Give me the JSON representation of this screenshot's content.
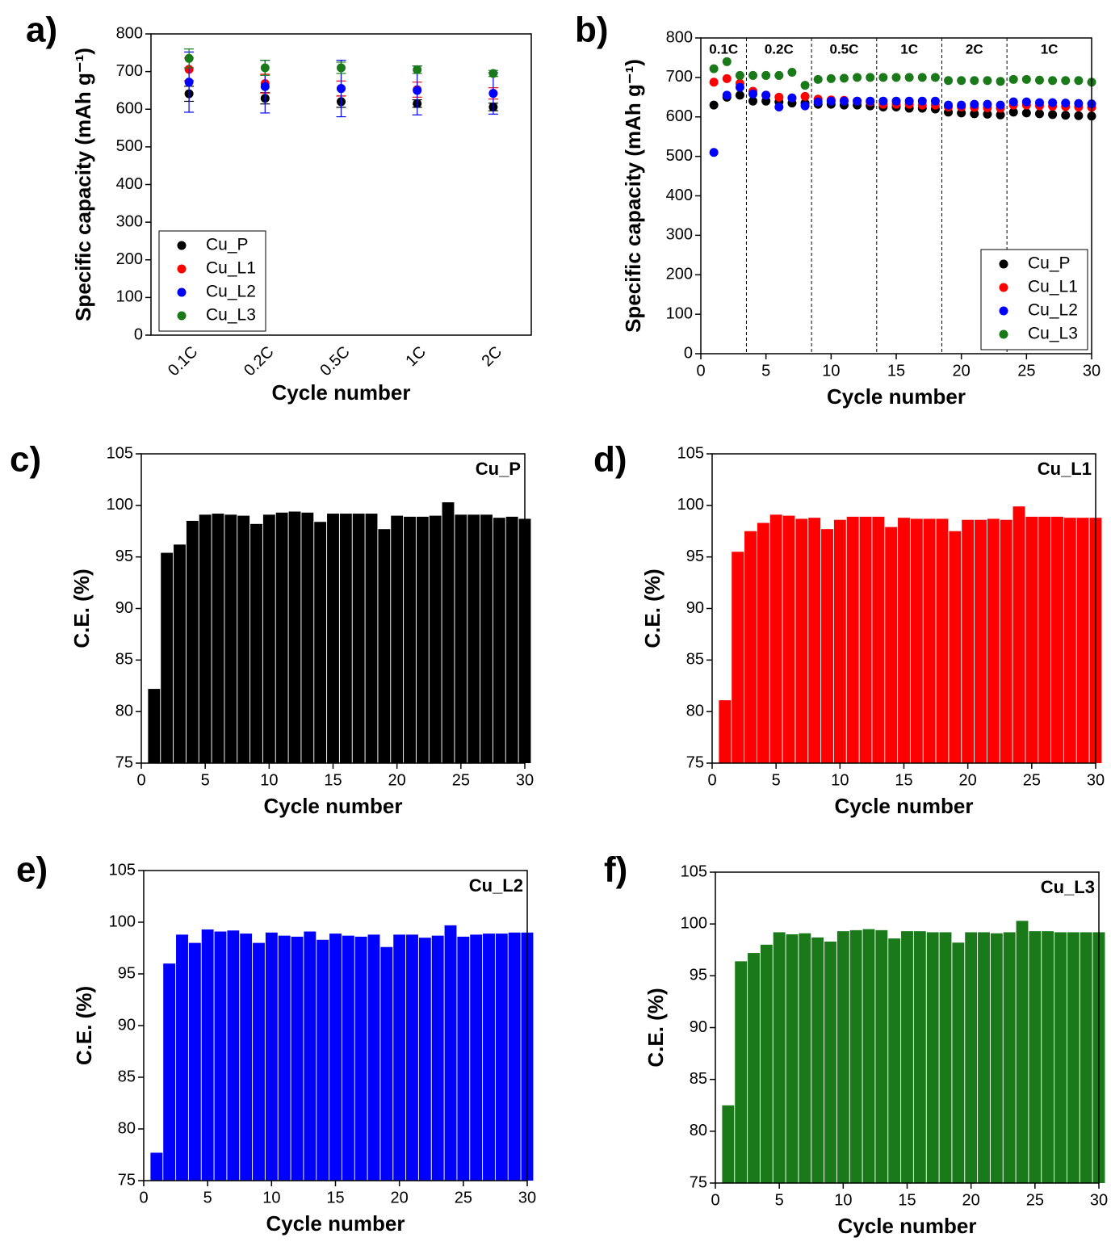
{
  "chart_data": [
    {
      "type": "scatter",
      "panel_label": "a)",
      "x_label": "Cycle number",
      "y_label": "Specific capacity (mAh g⁻¹)",
      "categories": [
        "0.1C",
        "0.2C",
        "0.5C",
        "1C",
        "2C"
      ],
      "ylim": [
        0,
        800
      ],
      "yticks": [
        0,
        100,
        200,
        300,
        400,
        500,
        600,
        700,
        800
      ],
      "legend": "lower left",
      "series": [
        {
          "name": "Cu_P",
          "color": "#000000",
          "values": [
            641,
            629,
            620,
            615,
            606
          ],
          "errors": [
            20,
            15,
            15,
            10,
            10
          ]
        },
        {
          "name": "Cu_L1",
          "color": "#ff0000",
          "values": [
            706,
            668,
            655,
            652,
            642
          ],
          "errors": [
            30,
            25,
            20,
            20,
            15
          ]
        },
        {
          "name": "Cu_L2",
          "color": "#0000ff",
          "values": [
            672,
            660,
            655,
            650,
            642
          ],
          "errors": [
            80,
            70,
            75,
            65,
            55
          ]
        },
        {
          "name": "Cu_L3",
          "color": "#1a7a1a",
          "values": [
            735,
            710,
            710,
            705,
            695
          ],
          "errors": [
            25,
            20,
            15,
            10,
            8
          ]
        }
      ]
    },
    {
      "type": "scatter",
      "panel_label": "b)",
      "x_label": "Cycle number",
      "y_label": "Specific capacity (mAh g⁻¹)",
      "x": [
        1,
        2,
        3,
        4,
        5,
        6,
        7,
        8,
        9,
        10,
        11,
        12,
        13,
        14,
        15,
        16,
        17,
        18,
        19,
        20,
        21,
        22,
        23,
        24,
        25,
        26,
        27,
        28,
        29,
        30
      ],
      "xlim": [
        0,
        30
      ],
      "xticks": [
        0,
        5,
        10,
        15,
        20,
        25,
        30
      ],
      "ylim": [
        0,
        800
      ],
      "yticks": [
        0,
        100,
        200,
        300,
        400,
        500,
        600,
        700,
        800
      ],
      "legend": "lower right",
      "dividers": [
        3.5,
        8.5,
        13.5,
        18.5,
        23.5
      ],
      "rate_labels": [
        "0.1C",
        "0.2C",
        "0.5C",
        "1C",
        "2C",
        "1C"
      ],
      "series": [
        {
          "name": "Cu_P",
          "color": "#000000",
          "values": [
            630,
            650,
            655,
            640,
            640,
            638,
            635,
            635,
            632,
            632,
            630,
            630,
            628,
            625,
            625,
            622,
            622,
            620,
            612,
            610,
            608,
            607,
            605,
            612,
            610,
            608,
            606,
            604,
            603,
            602
          ]
        },
        {
          "name": "Cu_L1",
          "color": "#ff0000",
          "values": [
            688,
            697,
            685,
            665,
            655,
            650,
            648,
            652,
            645,
            643,
            642,
            640,
            638,
            632,
            632,
            632,
            630,
            630,
            625,
            625,
            624,
            623,
            622,
            630,
            630,
            628,
            627,
            626,
            625,
            624
          ]
        },
        {
          "name": "Cu_L2",
          "color": "#0000ff",
          "values": [
            510,
            655,
            675,
            658,
            655,
            625,
            648,
            628,
            638,
            640,
            640,
            640,
            640,
            640,
            640,
            640,
            640,
            640,
            630,
            630,
            632,
            632,
            630,
            638,
            638,
            636,
            636,
            635,
            634,
            633
          ]
        },
        {
          "name": "Cu_L3",
          "color": "#1a7a1a",
          "values": [
            722,
            740,
            705,
            705,
            705,
            705,
            713,
            680,
            695,
            697,
            698,
            700,
            700,
            700,
            700,
            700,
            700,
            700,
            692,
            692,
            692,
            692,
            690,
            695,
            695,
            693,
            692,
            692,
            692,
            688
          ]
        }
      ]
    },
    {
      "type": "bar",
      "panel_label": "c)",
      "x_label": "Cycle number",
      "y_label": "C.E. (%)",
      "x": [
        1,
        2,
        3,
        4,
        5,
        6,
        7,
        8,
        9,
        10,
        11,
        12,
        13,
        14,
        15,
        16,
        17,
        18,
        19,
        20,
        21,
        22,
        23,
        24,
        25,
        26,
        27,
        28,
        29,
        30
      ],
      "xlim": [
        0,
        30
      ],
      "xticks": [
        0,
        5,
        10,
        15,
        20,
        25,
        30
      ],
      "ylim": [
        75,
        105
      ],
      "yticks": [
        75,
        80,
        85,
        90,
        95,
        100,
        105
      ],
      "series": [
        {
          "name": "Cu_P",
          "color": "#000000",
          "values": [
            82.2,
            95.4,
            96.2,
            98.5,
            99.1,
            99.2,
            99.1,
            99.0,
            98.2,
            99.1,
            99.3,
            99.4,
            99.3,
            98.4,
            99.2,
            99.2,
            99.2,
            99.2,
            97.7,
            99.0,
            98.9,
            98.9,
            99.0,
            100.3,
            99.1,
            99.1,
            99.1,
            98.8,
            98.9,
            98.7
          ]
        }
      ]
    },
    {
      "type": "bar",
      "panel_label": "d)",
      "x_label": "Cycle number",
      "y_label": "C.E. (%)",
      "x": [
        1,
        2,
        3,
        4,
        5,
        6,
        7,
        8,
        9,
        10,
        11,
        12,
        13,
        14,
        15,
        16,
        17,
        18,
        19,
        20,
        21,
        22,
        23,
        24,
        25,
        26,
        27,
        28,
        29,
        30
      ],
      "xlim": [
        0,
        30
      ],
      "xticks": [
        0,
        5,
        10,
        15,
        20,
        25,
        30
      ],
      "ylim": [
        75,
        105
      ],
      "yticks": [
        75,
        80,
        85,
        90,
        95,
        100,
        105
      ],
      "series": [
        {
          "name": "Cu_L1",
          "color": "#ff0000",
          "values": [
            81.1,
            95.5,
            97.5,
            98.3,
            99.1,
            99.0,
            98.7,
            98.8,
            97.7,
            98.6,
            98.9,
            98.9,
            98.9,
            97.9,
            98.8,
            98.7,
            98.7,
            98.7,
            97.5,
            98.6,
            98.6,
            98.7,
            98.6,
            99.9,
            98.9,
            98.9,
            98.9,
            98.8,
            98.8,
            98.8
          ]
        }
      ]
    },
    {
      "type": "bar",
      "panel_label": "e)",
      "x_label": "Cycle number",
      "y_label": "C.E. (%)",
      "x": [
        1,
        2,
        3,
        4,
        5,
        6,
        7,
        8,
        9,
        10,
        11,
        12,
        13,
        14,
        15,
        16,
        17,
        18,
        19,
        20,
        21,
        22,
        23,
        24,
        25,
        26,
        27,
        28,
        29,
        30
      ],
      "xlim": [
        0,
        30
      ],
      "xticks": [
        0,
        5,
        10,
        15,
        20,
        25,
        30
      ],
      "ylim": [
        75,
        105
      ],
      "yticks": [
        75,
        80,
        85,
        90,
        95,
        100,
        105
      ],
      "series": [
        {
          "name": "Cu_L2",
          "color": "#0000ff",
          "values": [
            77.7,
            96.0,
            98.8,
            98.0,
            99.3,
            99.1,
            99.2,
            98.9,
            98.0,
            99.0,
            98.7,
            98.6,
            99.1,
            98.3,
            98.9,
            98.7,
            98.6,
            98.8,
            97.6,
            98.8,
            98.8,
            98.5,
            98.7,
            99.7,
            98.6,
            98.8,
            98.9,
            98.9,
            99.0,
            99.0
          ]
        }
      ]
    },
    {
      "type": "bar",
      "panel_label": "f)",
      "x_label": "Cycle number",
      "y_label": "C.E. (%)",
      "x": [
        1,
        2,
        3,
        4,
        5,
        6,
        7,
        8,
        9,
        10,
        11,
        12,
        13,
        14,
        15,
        16,
        17,
        18,
        19,
        20,
        21,
        22,
        23,
        24,
        25,
        26,
        27,
        28,
        29,
        30
      ],
      "xlim": [
        0,
        30
      ],
      "xticks": [
        0,
        5,
        10,
        15,
        20,
        25,
        30
      ],
      "ylim": [
        75,
        105
      ],
      "yticks": [
        75,
        80,
        85,
        90,
        95,
        100,
        105
      ],
      "series": [
        {
          "name": "Cu_L3",
          "color": "#1a7a1a",
          "values": [
            82.5,
            96.4,
            97.2,
            98.0,
            99.2,
            99.0,
            99.1,
            98.7,
            98.3,
            99.3,
            99.4,
            99.5,
            99.4,
            98.6,
            99.3,
            99.3,
            99.2,
            99.2,
            98.2,
            99.2,
            99.2,
            99.1,
            99.2,
            100.3,
            99.3,
            99.3,
            99.2,
            99.2,
            99.2,
            99.2
          ]
        }
      ]
    }
  ]
}
